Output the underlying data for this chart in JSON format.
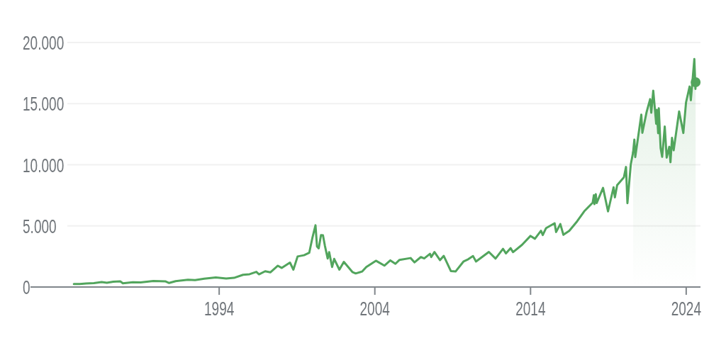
{
  "chart_data": {
    "type": "line",
    "xlim": [
      "1984-04",
      "2024-12"
    ],
    "xticks": [
      "1994",
      "2004",
      "2014",
      "2024"
    ],
    "ylim": [
      0,
      20000
    ],
    "yticks": [
      0,
      {
        "value": 5000,
        "label": "5.000"
      },
      {
        "value": 10000,
        "label": "10.000"
      },
      {
        "value": 15000,
        "label": "15.000"
      },
      {
        "value": 20000,
        "label": "20.000"
      }
    ],
    "grid": "y",
    "series": [
      {
        "color": "#52a55d",
        "x": [
          "1984-09-01",
          "1985-01-15",
          "1985-06-15",
          "1985-12-15",
          "1986-06-15",
          "1986-10-15",
          "1987-03-15",
          "1987-08-25",
          "1987-10-26",
          "1988-06-15",
          "1988-12-15",
          "1989-10-09",
          "1990-07-15",
          "1990-10-15",
          "1991-03-15",
          "1991-12-31",
          "1992-06-15",
          "1993-01-15",
          "1993-10-15",
          "1994-06-15",
          "1994-12-15",
          "1995-07-15",
          "1995-12-15",
          "1996-05-22",
          "1996-07-24",
          "1996-12-15",
          "1997-04-15",
          "1997-10-09",
          "1998-01-09",
          "1998-07-20",
          "1998-10-08",
          "1999-01-15",
          "1999-06-15",
          "1999-10-15",
          "1999-12-31",
          "2000-03-10",
          "2000-04-14",
          "2000-05-24",
          "2000-07-17",
          "2000-09-01",
          "2000-10-15",
          "2000-12-20",
          "2001-01-24",
          "2001-04-04",
          "2001-05-22",
          "2001-09-21",
          "2002-01-04",
          "2002-07-23",
          "2002-10-09",
          "2003-03-11",
          "2003-06-15",
          "2004-01-26",
          "2004-08-12",
          "2004-12-30",
          "2005-04-28",
          "2005-08-02",
          "2006-04-19",
          "2006-07-21",
          "2006-12-15",
          "2007-03-05",
          "2007-07-19",
          "2007-08-16",
          "2007-10-31",
          "2008-03-10",
          "2008-06-05",
          "2008-11-20",
          "2009-03-09",
          "2009-09-15",
          "2009-12-31",
          "2010-04-23",
          "2010-07-02",
          "2011-04-29",
          "2011-10-03",
          "2012-03-26",
          "2012-06-04",
          "2012-09-19",
          "2012-11-15",
          "2013-06-15",
          "2013-12-31",
          "2014-04-14",
          "2014-09-03",
          "2014-10-15",
          "2014-12-29",
          "2015-07-20",
          "2015-08-24",
          "2015-12-01",
          "2016-02-11",
          "2016-06-27",
          "2016-12-30",
          "2017-06-15",
          "2017-12-29",
          "2018-01-26",
          "2018-02-08",
          "2018-03-12",
          "2018-04-02",
          "2018-08-29",
          "2018-12-24",
          "2019-05-03",
          "2019-06-03",
          "2019-07-26",
          "2019-12-31",
          "2020-02-19",
          "2020-03-23",
          "2020-06-10",
          "2020-08-03"
        ],
        "values": [
          240,
          250,
          290,
          320,
          400,
          350,
          440,
          460,
          300,
          390,
          380,
          490,
          470,
          330,
          480,
          590,
          570,
          680,
          780,
          700,
          750,
          1000,
          1050,
          1240,
          1040,
          1290,
          1200,
          1740,
          1560,
          2000,
          1420,
          2500,
          2600,
          2800,
          4070,
          5050,
          3320,
          3160,
          4250,
          4230,
          3400,
          2330,
          2860,
          1640,
          2300,
          1420,
          2060,
          1230,
          1110,
          1270,
          1640,
          2150,
          1750,
          2180,
          1900,
          2220,
          2370,
          2020,
          2450,
          2340,
          2720,
          2450,
          2860,
          2200,
          2550,
          1300,
          1270,
          2100,
          2270,
          2530,
          2090,
          2870,
          2330,
          3120,
          2750,
          3180,
          2850,
          3450,
          4180,
          3950,
          4600,
          4250,
          4810,
          5220,
          4500,
          5150,
          4270,
          4590,
          5380,
          6200,
          6900,
          7510,
          6780,
          7590,
          6870,
          8110,
          6190,
          8160,
          7330,
          8330,
          8970,
          9820,
          6860,
          10020,
          11010
        ]
      },
      {
        "type": "area",
        "color": "#52a55d",
        "x": [
          "2020-08-03",
          "2020-09-02",
          "2020-09-23",
          "2021-02-12",
          "2021-03-08",
          "2021-06-15",
          "2021-09-07",
          "2021-10-04",
          "2021-11-19",
          "2022-01-27",
          "2022-02-09",
          "2022-03-14",
          "2022-03-29",
          "2022-05-11",
          "2022-06-16",
          "2022-08-16",
          "2022-09-30",
          "2022-11-30",
          "2022-12-28",
          "2023-02-02",
          "2023-03-13",
          "2023-07-19",
          "2023-10-26",
          "2023-12-28",
          "2024-03-21",
          "2024-04-19",
          "2024-07-10",
          "2024-08-05",
          "2024-08-09"
        ],
        "values": [
          11010,
          12060,
          10630,
          14100,
          12610,
          14300,
          15370,
          14260,
          16060,
          13350,
          14490,
          12580,
          14620,
          11360,
          10650,
          13130,
          10580,
          11470,
          10210,
          12200,
          11190,
          14360,
          12600,
          15100,
          16400,
          15280,
          18650,
          16200,
          16750
        ]
      },
      {
        "type": "scatter",
        "color": "#52a55d",
        "x": [
          "2024-08-09"
        ],
        "values": [
          16750
        ]
      }
    ]
  }
}
